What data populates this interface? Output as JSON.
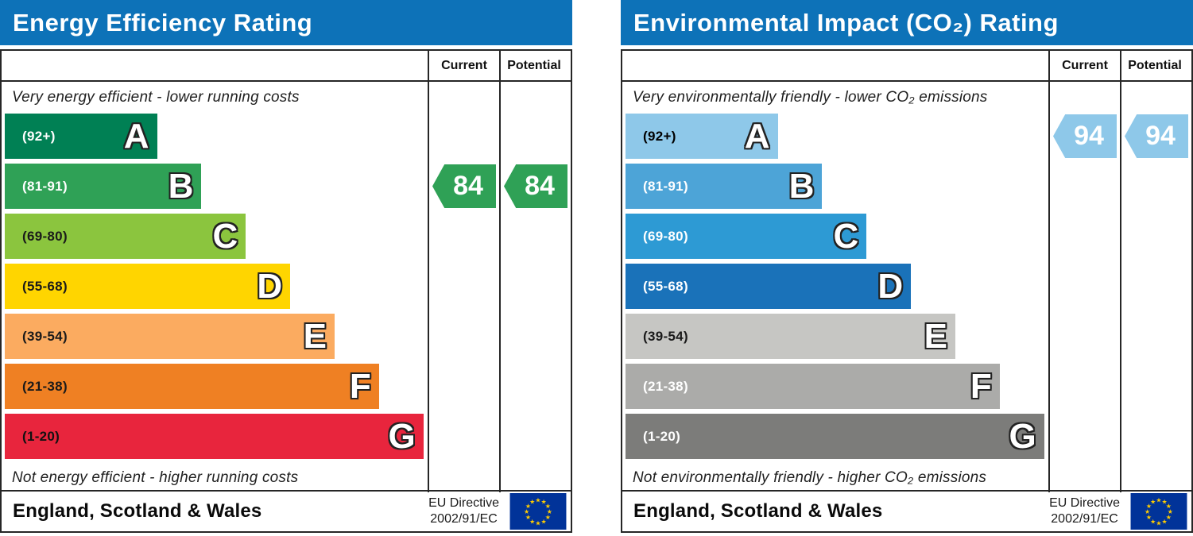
{
  "chart_data": [
    {
      "type": "bar",
      "title": "Energy Efficiency Rating",
      "columns": {
        "current": "Current",
        "potential": "Potential"
      },
      "top_caption": "Very energy efficient - lower running costs",
      "bottom_caption": "Not energy efficient - higher running costs",
      "categories": [
        "A",
        "B",
        "C",
        "D",
        "E",
        "F",
        "G"
      ],
      "bands": [
        {
          "grade": "A",
          "range": "(92+)",
          "color": "#008054",
          "label_color": "#ffffff",
          "width_pct": 36
        },
        {
          "grade": "B",
          "range": "(81-91)",
          "color": "#2fa156",
          "label_color": "#ffffff",
          "width_pct": 46.5
        },
        {
          "grade": "C",
          "range": "(69-80)",
          "color": "#8bc53e",
          "label_color": "#1a1a1a",
          "width_pct": 57
        },
        {
          "grade": "D",
          "range": "(55-68)",
          "color": "#ffd500",
          "label_color": "#1a1a1a",
          "width_pct": 67.5
        },
        {
          "grade": "E",
          "range": "(39-54)",
          "color": "#fbab60",
          "label_color": "#1a1a1a",
          "width_pct": 78
        },
        {
          "grade": "F",
          "range": "(21-38)",
          "color": "#ef8023",
          "label_color": "#1a1a1a",
          "width_pct": 88.5
        },
        {
          "grade": "G",
          "range": "(1-20)",
          "color": "#e8253d",
          "label_color": "#111111",
          "width_pct": 99
        }
      ],
      "current": {
        "value": "84",
        "band": "B",
        "band_index": 1,
        "color": "#2fa156"
      },
      "potential": {
        "value": "84",
        "band": "B",
        "band_index": 1,
        "color": "#2fa156"
      },
      "footer": {
        "region": "England, Scotland & Wales",
        "directive_line1": "EU Directive",
        "directive_line2": "2002/91/EC"
      }
    },
    {
      "type": "bar",
      "title": "Environmental Impact (CO₂) Rating",
      "columns": {
        "current": "Current",
        "potential": "Potential"
      },
      "top_caption": "Very environmentally friendly - lower CO₂ emissions",
      "bottom_caption": "Not environmentally friendly - higher CO₂ emissions",
      "categories": [
        "A",
        "B",
        "C",
        "D",
        "E",
        "F",
        "G"
      ],
      "bands": [
        {
          "grade": "A",
          "range": "(92+)",
          "color": "#8ec8e9",
          "label_color": "#000000",
          "width_pct": 36
        },
        {
          "grade": "B",
          "range": "(81-91)",
          "color": "#4da4d7",
          "label_color": "#ffffff",
          "width_pct": 46.5
        },
        {
          "grade": "C",
          "range": "(69-80)",
          "color": "#2d9ad4",
          "label_color": "#ffffff",
          "width_pct": 57
        },
        {
          "grade": "D",
          "range": "(55-68)",
          "color": "#1a72b9",
          "label_color": "#ffffff",
          "width_pct": 67.5
        },
        {
          "grade": "E",
          "range": "(39-54)",
          "color": "#c6c6c3",
          "label_color": "#1a1a1a",
          "width_pct": 78
        },
        {
          "grade": "F",
          "range": "(21-38)",
          "color": "#ababa9",
          "label_color": "#ffffff",
          "width_pct": 88.5
        },
        {
          "grade": "G",
          "range": "(1-20)",
          "color": "#7c7c7a",
          "label_color": "#ffffff",
          "width_pct": 99
        }
      ],
      "current": {
        "value": "94",
        "band": "A",
        "band_index": 0,
        "color": "#8ec8e9"
      },
      "potential": {
        "value": "94",
        "band": "A",
        "band_index": 0,
        "color": "#8ec8e9"
      },
      "footer": {
        "region": "England, Scotland & Wales",
        "directive_line1": "EU Directive",
        "directive_line2": "2002/91/EC"
      }
    }
  ],
  "flag_colors": {
    "field": "#013399",
    "stars": "#ffcc00"
  }
}
